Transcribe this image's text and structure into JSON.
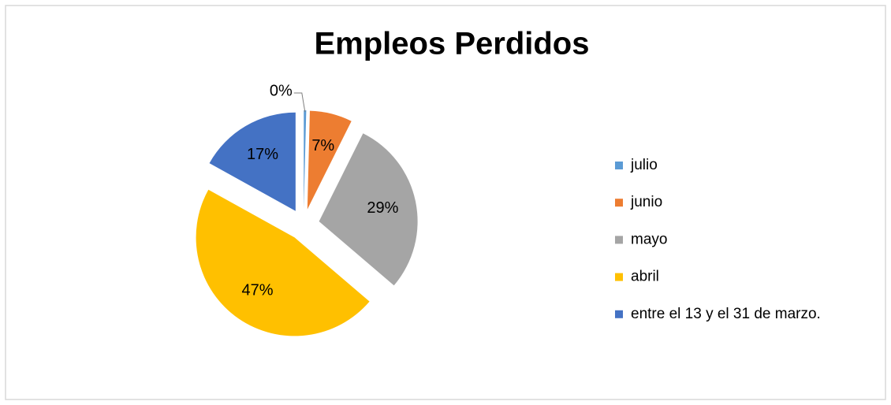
{
  "chart_data": {
    "type": "pie",
    "title": "Empleos Perdidos",
    "categories": [
      "julio",
      "junio",
      "mayo",
      "abril",
      "entre el 13 y el 31 de marzo."
    ],
    "values": [
      0.4,
      7,
      29,
      47,
      17
    ],
    "value_labels": [
      "0%",
      "7%",
      "29%",
      "47%",
      "17%"
    ],
    "colors": [
      "#5b9bd5",
      "#ed7d31",
      "#a5a5a5",
      "#ffc000",
      "#4472c4"
    ],
    "exploded": true,
    "legend": "right"
  }
}
